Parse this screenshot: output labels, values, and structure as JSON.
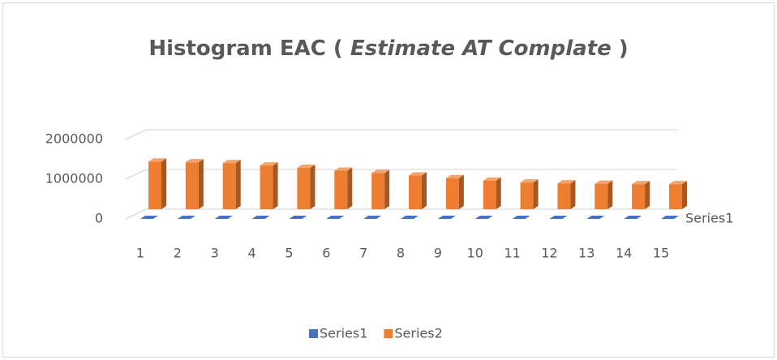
{
  "chart_data": {
    "type": "bar3d",
    "title": [
      "Histogram  EAC ( ",
      "Estimate AT  Complate",
      " )"
    ],
    "categories": [
      "1",
      "2",
      "3",
      "4",
      "5",
      "6",
      "7",
      "8",
      "9",
      "10",
      "11",
      "12",
      "13",
      "14",
      "15"
    ],
    "series": [
      {
        "name": "Series1",
        "color": "#4472c4",
        "values": [
          0,
          0,
          0,
          0,
          0,
          0,
          0,
          0,
          0,
          0,
          0,
          0,
          0,
          0,
          0
        ]
      },
      {
        "name": "Series2",
        "color": "#ed7d31",
        "values": [
          1200000,
          1180000,
          1160000,
          1100000,
          1040000,
          970000,
          910000,
          850000,
          780000,
          720000,
          670000,
          650000,
          640000,
          630000,
          630000
        ]
      }
    ],
    "ylim": [
      0,
      2000000
    ],
    "yticks": [
      0,
      1000000,
      2000000
    ],
    "grid": true,
    "legend": "bottom"
  }
}
